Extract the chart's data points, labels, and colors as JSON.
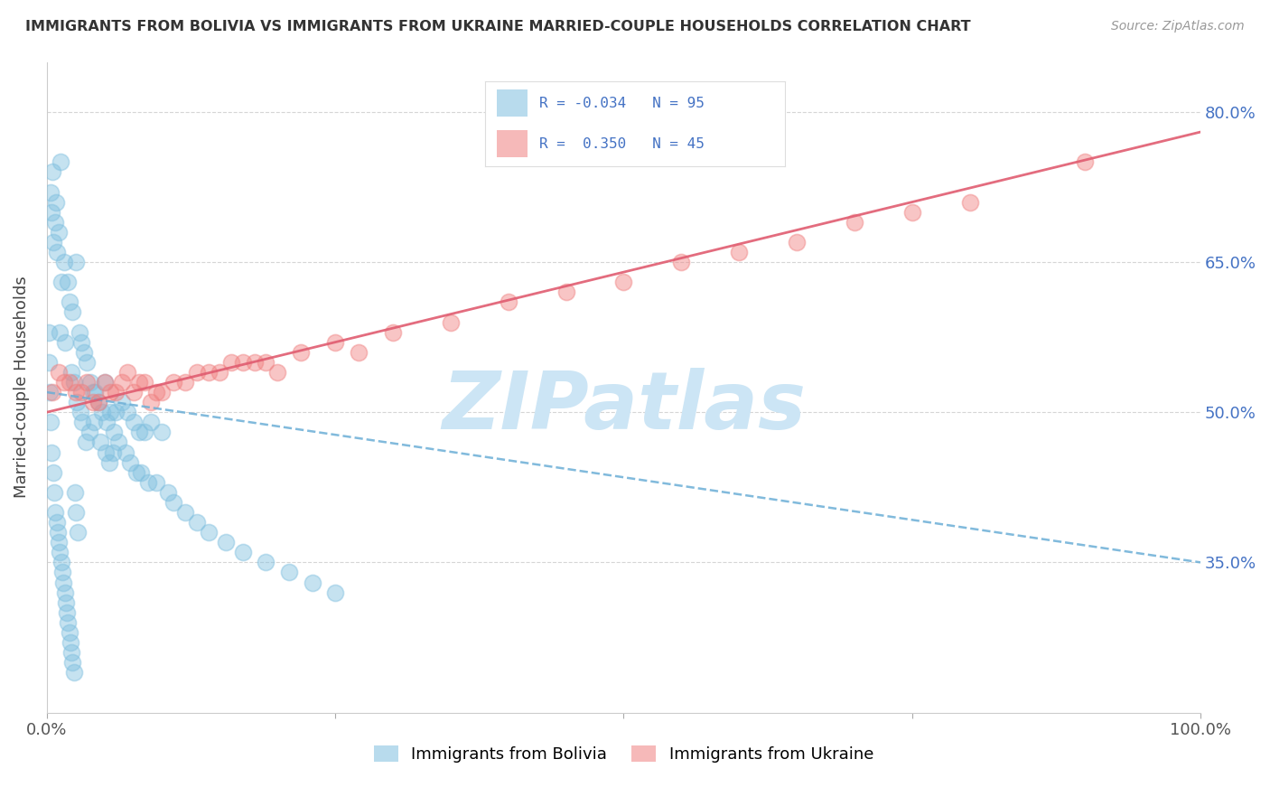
{
  "title": "IMMIGRANTS FROM BOLIVIA VS IMMIGRANTS FROM UKRAINE MARRIED-COUPLE HOUSEHOLDS CORRELATION CHART",
  "source": "Source: ZipAtlas.com",
  "ylabel": "Married-couple Households",
  "bolivia_R": -0.034,
  "bolivia_N": 95,
  "ukraine_R": 0.35,
  "ukraine_N": 45,
  "xlim": [
    0,
    100
  ],
  "ylim": [
    20,
    85
  ],
  "yticks": [
    35.0,
    50.0,
    65.0,
    80.0
  ],
  "bolivia_color": "#7fbfdf",
  "ukraine_color": "#f08080",
  "bolivia_trend_color": "#6baed6",
  "ukraine_trend_color": "#e05c70",
  "bolivia_line_start_y": 52.0,
  "bolivia_line_end_y": 35.0,
  "ukraine_line_start_y": 50.0,
  "ukraine_line_end_y": 78.0,
  "watermark_text": "ZIPatlas",
  "watermark_color": "#cce5f5",
  "bolivia_x": [
    0.3,
    0.5,
    0.8,
    1.0,
    1.2,
    0.4,
    0.6,
    0.7,
    1.5,
    1.8,
    2.0,
    2.2,
    2.5,
    1.1,
    1.3,
    0.9,
    1.6,
    2.8,
    3.0,
    3.2,
    3.5,
    3.8,
    4.0,
    2.1,
    2.4,
    2.6,
    2.9,
    3.1,
    4.2,
    4.5,
    4.8,
    5.0,
    5.2,
    5.5,
    5.8,
    3.4,
    3.7,
    4.1,
    4.6,
    5.1,
    6.0,
    6.5,
    7.0,
    7.5,
    8.0,
    8.5,
    9.0,
    10.0,
    5.4,
    5.7,
    6.2,
    6.8,
    7.2,
    7.8,
    8.2,
    8.8,
    9.5,
    10.5,
    11.0,
    12.0,
    0.2,
    0.15,
    0.25,
    0.35,
    0.45,
    0.55,
    0.65,
    0.75,
    0.85,
    0.95,
    1.05,
    1.15,
    1.25,
    1.35,
    1.45,
    1.55,
    1.65,
    1.75,
    1.85,
    1.95,
    2.05,
    2.15,
    2.25,
    2.35,
    2.45,
    2.55,
    2.65,
    13.0,
    14.0,
    15.5,
    17.0,
    19.0,
    21.0,
    23.0,
    25.0
  ],
  "bolivia_y": [
    72,
    74,
    71,
    68,
    75,
    70,
    67,
    69,
    65,
    63,
    61,
    60,
    65,
    58,
    63,
    66,
    57,
    58,
    57,
    56,
    55,
    53,
    52,
    54,
    53,
    51,
    50,
    49,
    52,
    51,
    50,
    53,
    49,
    50,
    48,
    47,
    48,
    49,
    47,
    46,
    50,
    51,
    50,
    49,
    48,
    48,
    49,
    48,
    45,
    46,
    47,
    46,
    45,
    44,
    44,
    43,
    43,
    42,
    41,
    40,
    58,
    55,
    52,
    49,
    46,
    44,
    42,
    40,
    39,
    38,
    37,
    36,
    35,
    34,
    33,
    32,
    31,
    30,
    29,
    28,
    27,
    26,
    25,
    24,
    42,
    40,
    38,
    39,
    38,
    37,
    36,
    35,
    34,
    33,
    32
  ],
  "ukraine_x": [
    0.5,
    1.0,
    2.0,
    3.0,
    4.0,
    5.0,
    6.0,
    7.0,
    8.0,
    9.0,
    10.0,
    12.0,
    14.0,
    16.0,
    18.0,
    20.0,
    25.0,
    30.0,
    35.0,
    40.0,
    45.0,
    50.0,
    55.0,
    60.0,
    65.0,
    70.0,
    75.0,
    80.0,
    90.0,
    1.5,
    2.5,
    3.5,
    4.5,
    5.5,
    6.5,
    7.5,
    8.5,
    9.5,
    11.0,
    13.0,
    15.0,
    17.0,
    19.0,
    22.0,
    27.0
  ],
  "ukraine_y": [
    52,
    54,
    53,
    52,
    51,
    53,
    52,
    54,
    53,
    51,
    52,
    53,
    54,
    55,
    55,
    54,
    57,
    58,
    59,
    61,
    62,
    63,
    65,
    66,
    67,
    69,
    70,
    71,
    75,
    53,
    52,
    53,
    51,
    52,
    53,
    52,
    53,
    52,
    53,
    54,
    54,
    55,
    55,
    56,
    56
  ]
}
